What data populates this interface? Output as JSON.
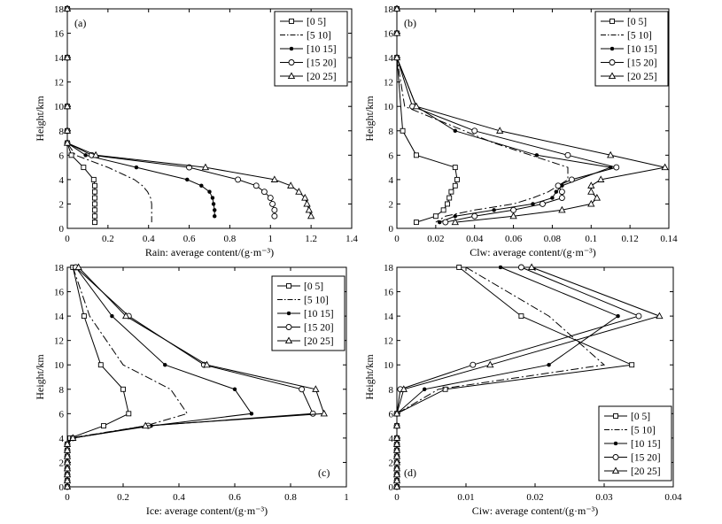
{
  "chart_data": [
    {
      "type": "line",
      "panel": "(a)",
      "xlabel": "Rain: average content/(g·m⁻³)",
      "ylabel": "Height/km",
      "xlim": [
        0,
        1.4
      ],
      "ylim": [
        0,
        18
      ],
      "xticks": [
        "0",
        "0.2",
        "0.4",
        "0.6",
        "0.8",
        "1",
        "1.2",
        "1.4"
      ],
      "yticks": [
        "0",
        "2",
        "4",
        "6",
        "8",
        "10",
        "12",
        "14",
        "16",
        "18"
      ],
      "legend_position": "top-right",
      "series": [
        {
          "name": "[0 5]",
          "x": [
            0,
            0,
            0,
            0,
            0,
            0.02,
            0.08,
            0.13,
            0.135,
            0.135,
            0.135,
            0.135,
            0.135,
            0.135,
            0.135,
            0.135
          ],
          "y": [
            18,
            14,
            10,
            8,
            7,
            6,
            5,
            4,
            3.5,
            3,
            2.5,
            2,
            1.5,
            1,
            0.5,
            0.5
          ]
        },
        {
          "name": "[5 10]",
          "x": [
            0,
            0,
            0,
            0,
            0,
            0.04,
            0.2,
            0.33,
            0.37,
            0.395,
            0.41,
            0.415,
            0.415,
            0.415
          ],
          "y": [
            18,
            14,
            10,
            8,
            7,
            6,
            5,
            4,
            3.5,
            3,
            2.5,
            2,
            1.5,
            0.5
          ]
        },
        {
          "name": "[10 15]",
          "x": [
            0,
            0,
            0,
            0,
            0,
            0.09,
            0.34,
            0.59,
            0.66,
            0.7,
            0.715,
            0.72,
            0.725,
            0.725
          ],
          "y": [
            18,
            14,
            10,
            8,
            7,
            6,
            5,
            4,
            3.5,
            3,
            2.5,
            2,
            1.5,
            1
          ]
        },
        {
          "name": "[15 20]",
          "x": [
            0,
            0,
            0,
            0,
            0,
            0.12,
            0.6,
            0.84,
            0.93,
            0.97,
            1.0,
            1.01,
            1.02,
            1.02
          ],
          "y": [
            18,
            14,
            10,
            8,
            7,
            6,
            5,
            4,
            3.5,
            3,
            2.5,
            2,
            1.5,
            1
          ]
        },
        {
          "name": "[20 25]",
          "x": [
            0,
            0,
            0,
            0,
            0,
            0.14,
            0.68,
            1.02,
            1.1,
            1.14,
            1.17,
            1.18,
            1.19,
            1.2
          ],
          "y": [
            18,
            14,
            10,
            8,
            7,
            6,
            5,
            4,
            3.5,
            3,
            2.5,
            2,
            1.5,
            1
          ]
        }
      ]
    },
    {
      "type": "line",
      "panel": "(b)",
      "xlabel": "Clw: average content/(g·m⁻³)",
      "ylabel": "Height/km",
      "xlim": [
        0,
        0.14
      ],
      "ylim": [
        0,
        18
      ],
      "xticks": [
        "0",
        "0.02",
        "0.04",
        "0.06",
        "0.08",
        "0.1",
        "0.12",
        "0.14"
      ],
      "yticks": [
        "0",
        "2",
        "4",
        "6",
        "8",
        "10",
        "12",
        "14",
        "16",
        "18"
      ],
      "legend_position": "top-right",
      "series": [
        {
          "name": "[0 5]",
          "x": [
            0,
            0,
            0,
            0.003,
            0.01,
            0.03,
            0.031,
            0.03,
            0.028,
            0.027,
            0.026,
            0.024,
            0.02,
            0.01
          ],
          "y": [
            18,
            16,
            14,
            8,
            6,
            5,
            4,
            3.5,
            3,
            2.5,
            2,
            1.5,
            1,
            0.5
          ]
        },
        {
          "name": "[5 10]",
          "x": [
            0,
            0,
            0,
            0.004,
            0.05,
            0.088,
            0.088,
            0.078,
            0.07,
            0.06,
            0.04,
            0.025,
            0.02
          ],
          "y": [
            18,
            16,
            14,
            10,
            7,
            5,
            4,
            3,
            2.5,
            2,
            1.5,
            1,
            0.5
          ]
        },
        {
          "name": "[10 15]",
          "x": [
            0,
            0,
            0,
            0.01,
            0.03,
            0.072,
            0.11,
            0.085,
            0.082,
            0.08,
            0.07,
            0.05,
            0.03,
            0.022
          ],
          "y": [
            18,
            16,
            14,
            10,
            8,
            6,
            5,
            3.5,
            3,
            2.5,
            2,
            1.5,
            1,
            0.5
          ]
        },
        {
          "name": "[15 20]",
          "x": [
            0,
            0,
            0,
            0.008,
            0.04,
            0.088,
            0.113,
            0.09,
            0.083,
            0.085,
            0.085,
            0.075,
            0.06,
            0.04,
            0.025
          ],
          "y": [
            18,
            16,
            14,
            10,
            8,
            6,
            5,
            4,
            3.5,
            3,
            2.5,
            2,
            1.5,
            1,
            0.5
          ]
        },
        {
          "name": "[20 25]",
          "x": [
            0,
            0,
            0,
            0.01,
            0.053,
            0.11,
            0.138,
            0.105,
            0.1,
            0.1,
            0.103,
            0.1,
            0.085,
            0.06,
            0.03
          ],
          "y": [
            18,
            16,
            14,
            10,
            8,
            6,
            5,
            4,
            3.5,
            3,
            2.5,
            2,
            1.5,
            1,
            0.5
          ]
        }
      ]
    },
    {
      "type": "line",
      "panel": "(c)",
      "xlabel": "Ice: average content/(g·m⁻³)",
      "ylabel": "Height/km",
      "xlim": [
        0,
        1
      ],
      "ylim": [
        0,
        18
      ],
      "xticks": [
        "0",
        "0.2",
        "0.4",
        "0.6",
        "0.8",
        "1"
      ],
      "yticks": [
        "0",
        "2",
        "4",
        "6",
        "8",
        "10",
        "12",
        "14",
        "16",
        "18"
      ],
      "legend_position": "top-right",
      "series": [
        {
          "name": "[0 5]",
          "x": [
            0.02,
            0.06,
            0.12,
            0.2,
            0.22,
            0.13,
            0.01,
            0,
            0,
            0,
            0,
            0,
            0,
            0,
            0
          ],
          "y": [
            18,
            14,
            10,
            8,
            6,
            5,
            4,
            3.5,
            3,
            2.5,
            2,
            1.5,
            1,
            0.5,
            0
          ]
        },
        {
          "name": "[5 10]",
          "x": [
            0.02,
            0.08,
            0.2,
            0.37,
            0.43,
            0.28,
            0.01,
            0,
            0,
            0,
            0,
            0,
            0,
            0,
            0
          ],
          "y": [
            18,
            14,
            10,
            8,
            6,
            5,
            4,
            3.5,
            3,
            2.5,
            2,
            1.5,
            1,
            0.5,
            0
          ]
        },
        {
          "name": "[10 15]",
          "x": [
            0.03,
            0.16,
            0.35,
            0.6,
            0.66,
            0.3,
            0.02,
            0,
            0,
            0,
            0,
            0,
            0,
            0,
            0
          ],
          "y": [
            18,
            14,
            10,
            8,
            6,
            5,
            4,
            3.5,
            3,
            2.5,
            2,
            1.5,
            1,
            0.5,
            0
          ]
        },
        {
          "name": "[15 20]",
          "x": [
            0.03,
            0.22,
            0.49,
            0.84,
            0.88,
            0.29,
            0.02,
            0,
            0,
            0,
            0,
            0,
            0,
            0,
            0
          ],
          "y": [
            18,
            14,
            10,
            8,
            6,
            5,
            4,
            3.5,
            3,
            2.5,
            2,
            1.5,
            1,
            0.5,
            0
          ]
        },
        {
          "name": "[20 25]",
          "x": [
            0.04,
            0.21,
            0.5,
            0.89,
            0.92,
            0.28,
            0.02,
            0,
            0,
            0,
            0,
            0,
            0,
            0,
            0
          ],
          "y": [
            18,
            14,
            10,
            8,
            6,
            5,
            4,
            3.5,
            3,
            2.5,
            2,
            1.5,
            1,
            0.5,
            0
          ]
        }
      ]
    },
    {
      "type": "line",
      "panel": "(d)",
      "xlabel": "Ciw: average content/(g·m⁻³)",
      "ylabel": "Height/km",
      "xlim": [
        0,
        0.04
      ],
      "ylim": [
        0,
        18
      ],
      "xticks": [
        "0",
        "0.01",
        "0.02",
        "0.03",
        "0.04"
      ],
      "yticks": [
        "0",
        "2",
        "4",
        "6",
        "8",
        "10",
        "12",
        "14",
        "16",
        "18"
      ],
      "legend_position": "bottom-right",
      "series": [
        {
          "name": "[0 5]",
          "x": [
            0.009,
            0.018,
            0.034,
            0.007,
            0,
            0,
            0,
            0,
            0,
            0,
            0,
            0,
            0,
            0,
            0
          ],
          "y": [
            18,
            14,
            10,
            8,
            6,
            5,
            4,
            3.5,
            3,
            2.5,
            2,
            1.5,
            1,
            0.5,
            0
          ]
        },
        {
          "name": "[5 10]",
          "x": [
            0.01,
            0.022,
            0.03,
            0.006,
            0,
            0,
            0,
            0,
            0,
            0,
            0,
            0,
            0,
            0,
            0
          ],
          "y": [
            18,
            14,
            10,
            8,
            6,
            5,
            4,
            3.5,
            3,
            2.5,
            2,
            1.5,
            1,
            0.5,
            0
          ]
        },
        {
          "name": "[10 15]",
          "x": [
            0.015,
            0.032,
            0.022,
            0.004,
            0,
            0,
            0,
            0,
            0,
            0,
            0,
            0,
            0,
            0,
            0
          ],
          "y": [
            18,
            14,
            10,
            8,
            6,
            5,
            4,
            3.5,
            3,
            2.5,
            2,
            1.5,
            1,
            0.5,
            0
          ]
        },
        {
          "name": "[15 20]",
          "x": [
            0.018,
            0.035,
            0.011,
            0.0005,
            0,
            0,
            0,
            0,
            0,
            0,
            0,
            0,
            0,
            0,
            0
          ],
          "y": [
            18,
            14,
            10,
            8,
            6,
            5,
            4,
            3.5,
            3,
            2.5,
            2,
            1.5,
            1,
            0.5,
            0
          ]
        },
        {
          "name": "[20 25]",
          "x": [
            0.0195,
            0.038,
            0.0135,
            0.001,
            0,
            0,
            0,
            0,
            0,
            0,
            0,
            0,
            0,
            0,
            0
          ],
          "y": [
            18,
            14,
            10,
            8,
            6,
            5,
            4,
            3.5,
            3,
            2.5,
            2,
            1.5,
            1,
            0.5,
            0
          ]
        }
      ]
    }
  ]
}
